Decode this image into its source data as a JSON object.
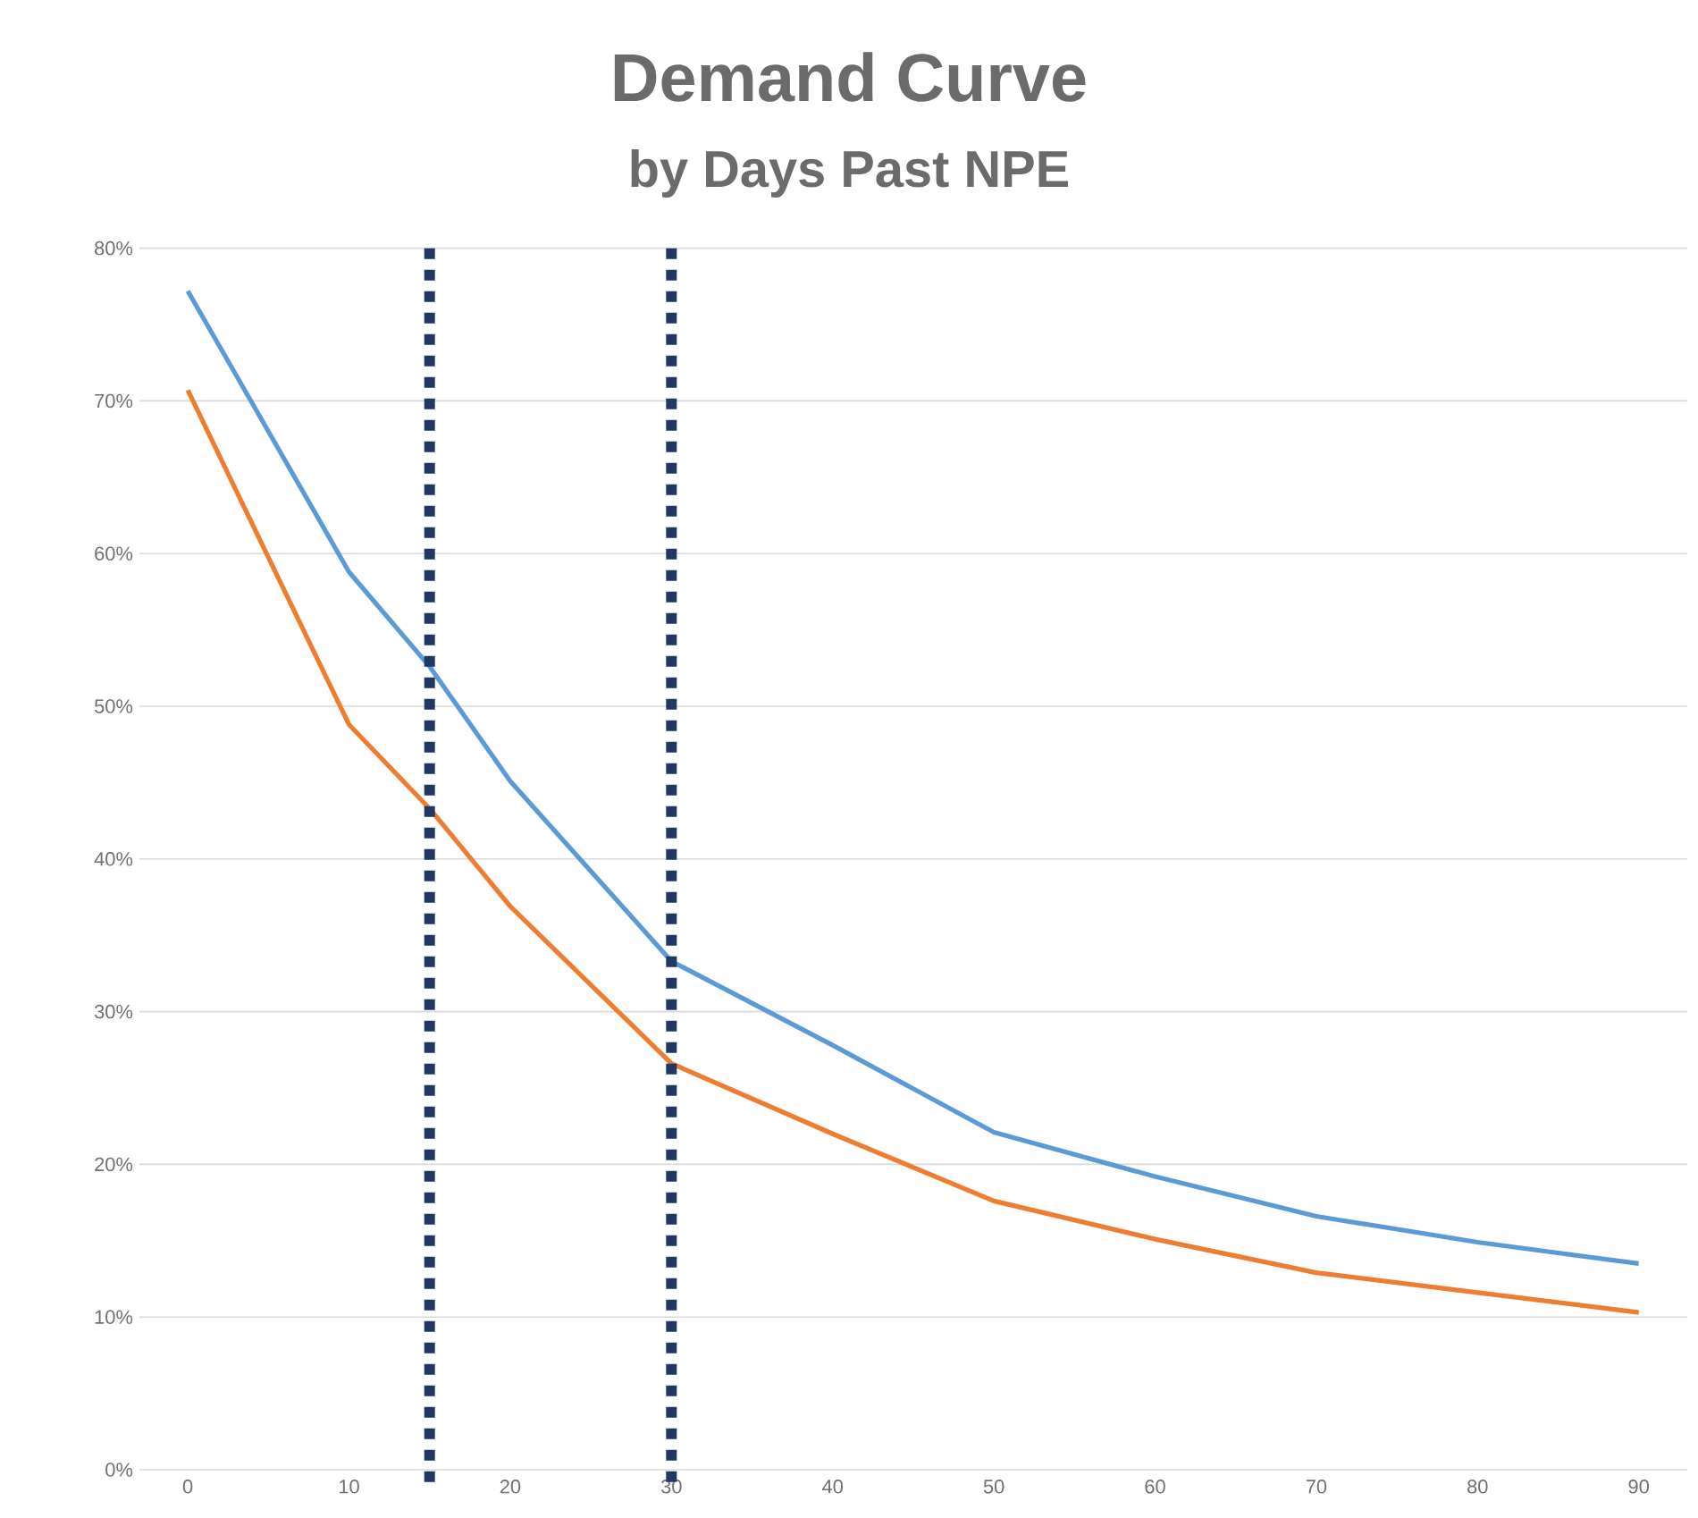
{
  "chart_data": {
    "type": "line",
    "title": "Demand Curve",
    "subtitle": "by Days Past NPE",
    "x": [
      0,
      10,
      15,
      20,
      30,
      40,
      50,
      60,
      70,
      80,
      90
    ],
    "series": [
      {
        "color": "#5b9bd5",
        "values": [
          77.2,
          58.8,
          52.6,
          45.1,
          33.3,
          27.8,
          22.1,
          19.2,
          16.6,
          14.9,
          13.5
        ]
      },
      {
        "color": "#ed7d31",
        "values": [
          70.7,
          48.8,
          43.3,
          36.9,
          26.6,
          22.0,
          17.6,
          15.1,
          12.9,
          11.6,
          10.3
        ]
      }
    ],
    "xlim": [
      -3,
      93
    ],
    "ylim": [
      0,
      80
    ],
    "xticks": [
      0,
      10,
      20,
      30,
      40,
      50,
      60,
      70,
      80,
      90
    ],
    "yticks": [
      {
        "value": 0,
        "label": "0%"
      },
      {
        "value": 10,
        "label": "10%"
      },
      {
        "value": 20,
        "label": "20%"
      },
      {
        "value": 30,
        "label": "30%"
      },
      {
        "value": 40,
        "label": "40%"
      },
      {
        "value": 50,
        "label": "50%"
      },
      {
        "value": 60,
        "label": "60%"
      },
      {
        "value": 70,
        "label": "70%"
      },
      {
        "value": 80,
        "label": "80%"
      }
    ],
    "ref_lines": [
      {
        "axis": "x",
        "value": 15,
        "color": "#1f3864",
        "line_style": "dotted"
      },
      {
        "axis": "x",
        "value": 30,
        "color": "#1f3864",
        "line_style": "dotted"
      }
    ],
    "grid": "y",
    "marker": "none",
    "line_style": "solid"
  }
}
